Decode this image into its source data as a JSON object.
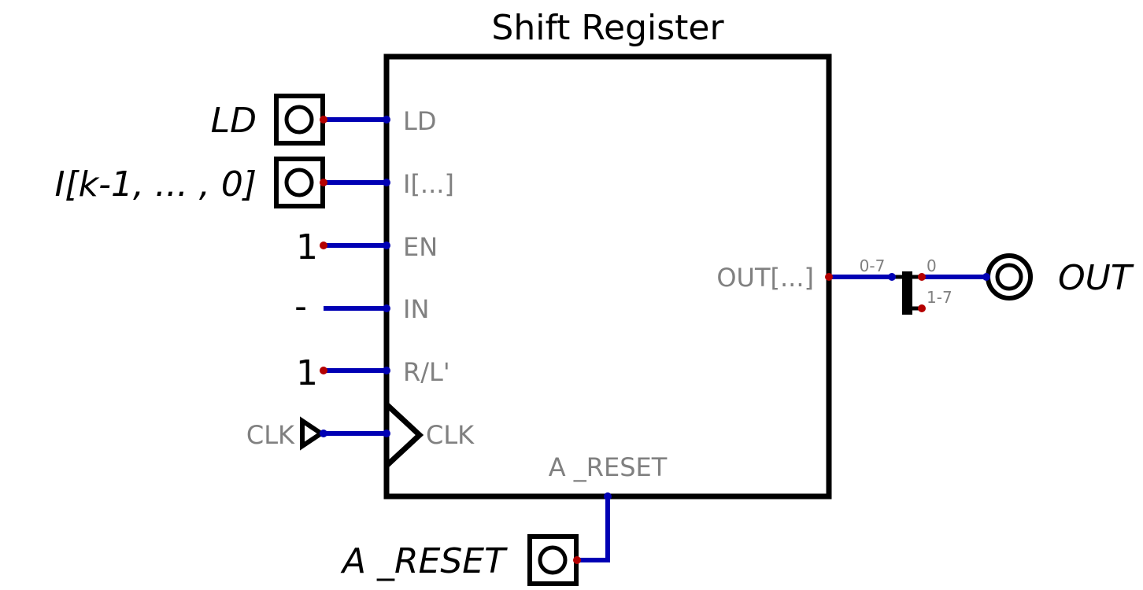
{
  "component": {
    "title": "Shift Register",
    "pins": {
      "ld": "LD",
      "i": "I[...]",
      "en": "EN",
      "in": "IN",
      "rl": "R/L'",
      "clk": "CLK",
      "out": "OUT[...]",
      "areset": "A _RESET"
    }
  },
  "inputs": {
    "ld": "LD",
    "i": "I[k-1, ... , 0]",
    "en": "1",
    "in": "-",
    "rl": "1",
    "clk": "CLK",
    "areset": "A _RESET"
  },
  "splitter": {
    "in_range": "0-7",
    "out0": "0",
    "out1": "1-7"
  },
  "output": {
    "label": "OUT"
  },
  "colors": {
    "wire": "#0000b4",
    "connector_dot": "#b40000",
    "pin_label": "#808080",
    "outline": "#000000"
  }
}
